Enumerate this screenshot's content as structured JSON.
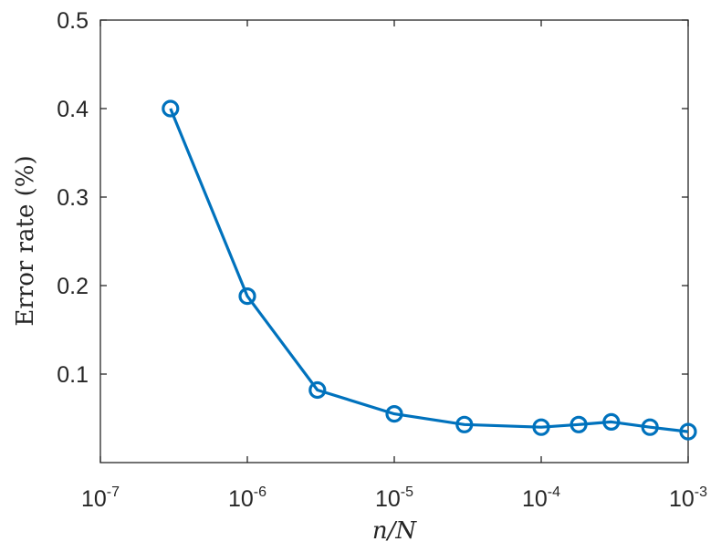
{
  "chart_data": {
    "type": "line",
    "xscale": "log",
    "xlim": [
      1e-07,
      0.001
    ],
    "ylim": [
      0.0,
      0.5
    ],
    "xlabel": "n/N",
    "ylabel": "Error rate (%)",
    "title": "",
    "grid": false,
    "legend": "none",
    "xticks": [
      {
        "base": "10",
        "exp": "-7",
        "value": 1e-07
      },
      {
        "base": "10",
        "exp": "-6",
        "value": 1e-06
      },
      {
        "base": "10",
        "exp": "-5",
        "value": 1e-05
      },
      {
        "base": "10",
        "exp": "-4",
        "value": 0.0001
      },
      {
        "base": "10",
        "exp": "-3",
        "value": 0.001
      }
    ],
    "yticks": [
      {
        "label": "0.1",
        "value": 0.1
      },
      {
        "label": "0.2",
        "value": 0.2
      },
      {
        "label": "0.3",
        "value": 0.3
      },
      {
        "label": "0.4",
        "value": 0.4
      },
      {
        "label": "0.5",
        "value": 0.5
      }
    ],
    "series": [
      {
        "color": "#0072BD",
        "marker": "circle",
        "x": [
          3e-07,
          1e-06,
          3e-06,
          1e-05,
          3e-05,
          0.0001,
          0.00018,
          0.0003,
          0.00055,
          0.001
        ],
        "y": [
          0.4,
          0.188,
          0.082,
          0.055,
          0.043,
          0.04,
          0.043,
          0.046,
          0.04,
          0.035
        ]
      }
    ]
  }
}
